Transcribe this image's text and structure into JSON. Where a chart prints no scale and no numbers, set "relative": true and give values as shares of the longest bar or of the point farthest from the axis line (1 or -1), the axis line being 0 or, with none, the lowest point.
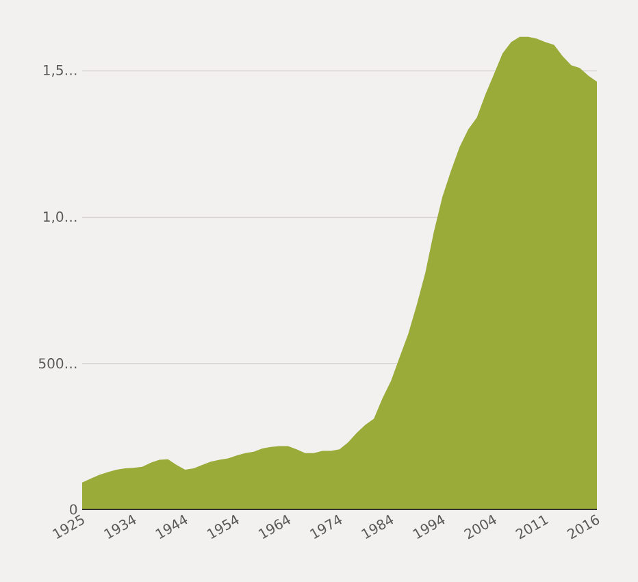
{
  "chart_data": {
    "type": "area",
    "color": "#9aab3a",
    "relative": true,
    "categories": [
      "1925",
      null,
      null,
      null,
      null,
      null,
      "1934",
      null,
      null,
      null,
      null,
      null,
      "1944",
      null,
      null,
      null,
      null,
      null,
      "1954",
      null,
      null,
      null,
      null,
      null,
      "1964",
      null,
      null,
      null,
      null,
      null,
      "1974",
      null,
      null,
      null,
      null,
      null,
      "1984",
      null,
      null,
      null,
      null,
      null,
      "1994",
      null,
      null,
      null,
      null,
      null,
      "2004",
      null,
      null,
      null,
      null,
      null,
      "2011",
      null,
      null,
      null,
      null,
      null,
      "2016"
    ],
    "values": [
      0.057,
      0.065,
      0.073,
      0.079,
      0.084,
      0.087,
      0.088,
      0.09,
      0.099,
      0.105,
      0.106,
      0.094,
      0.084,
      0.087,
      0.094,
      0.101,
      0.105,
      0.108,
      0.114,
      0.119,
      0.122,
      0.129,
      0.132,
      0.134,
      0.134,
      0.127,
      0.119,
      0.119,
      0.124,
      0.124,
      0.127,
      0.142,
      0.162,
      0.179,
      0.192,
      0.235,
      0.272,
      0.322,
      0.371,
      0.433,
      0.501,
      0.588,
      0.662,
      0.717,
      0.767,
      0.804,
      0.829,
      0.878,
      0.921,
      0.965,
      0.989,
      1,
      1,
      0.996,
      0.989,
      0.983,
      0.959,
      0.94,
      0.934,
      0.918,
      0.905
    ],
    "ref_lines": [
      {
        "axis": "y",
        "value": 0.309,
        "label": "500…",
        "color": "#d6d4d2"
      },
      {
        "axis": "y",
        "value": 0.618,
        "label": "1,0…",
        "color": "#d6d4d2"
      },
      {
        "axis": "y",
        "value": 0.928,
        "label": "1,5…",
        "color": "#d6d4d2"
      }
    ],
    "annotations": [
      "0"
    ]
  }
}
